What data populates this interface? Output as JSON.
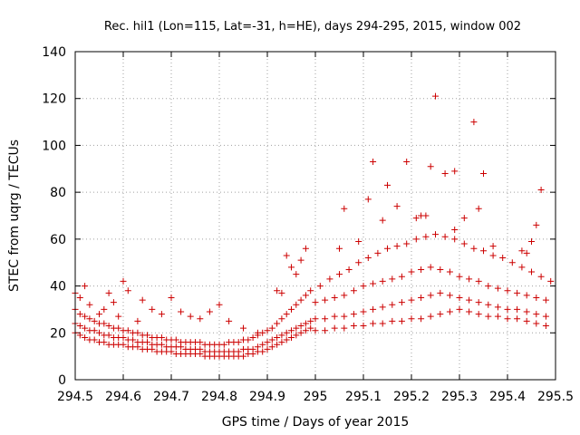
{
  "chart_data": {
    "type": "scatter",
    "title": "Rec. hil1 (Lon=115, Lat=-31, h=HE), days 294-295, 2015, window 002",
    "xlabel": "GPS time / Days of year 2015",
    "ylabel": "STEC from uqrg / TECUs",
    "xlim": [
      294.5,
      295.5
    ],
    "ylim": [
      0,
      140
    ],
    "x_ticks": [
      "294.5",
      "294.6",
      "294.7",
      "294.8",
      "294.9",
      "295",
      "295.1",
      "295.2",
      "295.3",
      "295.4",
      "295.5"
    ],
    "y_ticks": [
      "0",
      "20",
      "40",
      "60",
      "80",
      "100",
      "120",
      "140"
    ],
    "grid": true,
    "marker": "+",
    "color": "#cc0000",
    "series": [
      {
        "name": "STEC",
        "x": [
          294.5,
          294.51,
          294.52,
          294.53,
          294.54,
          294.55,
          294.56,
          294.57,
          294.58,
          294.59,
          294.6,
          294.61,
          294.62,
          294.63,
          294.64,
          294.65,
          294.66,
          294.67,
          294.68,
          294.69,
          294.7,
          294.71,
          294.72,
          294.73,
          294.74,
          294.75,
          294.76,
          294.77,
          294.78,
          294.79,
          294.8,
          294.81,
          294.82,
          294.83,
          294.84,
          294.85,
          294.86,
          294.87,
          294.88,
          294.89,
          294.9,
          294.91,
          294.92,
          294.93,
          294.94,
          294.95,
          294.96,
          294.97,
          294.98,
          294.99,
          294.5,
          294.51,
          294.52,
          294.53,
          294.54,
          294.55,
          294.56,
          294.57,
          294.58,
          294.59,
          294.6,
          294.61,
          294.62,
          294.63,
          294.64,
          294.65,
          294.66,
          294.67,
          294.68,
          294.69,
          294.7,
          294.71,
          294.72,
          294.73,
          294.74,
          294.75,
          294.76,
          294.77,
          294.78,
          294.79,
          294.8,
          294.81,
          294.82,
          294.83,
          294.84,
          294.85,
          294.86,
          294.87,
          294.88,
          294.89,
          294.9,
          294.91,
          294.92,
          294.93,
          294.94,
          294.95,
          294.96,
          294.97,
          294.98,
          294.99,
          294.5,
          294.51,
          294.52,
          294.53,
          294.54,
          294.55,
          294.56,
          294.57,
          294.58,
          294.59,
          294.6,
          294.61,
          294.62,
          294.63,
          294.64,
          294.65,
          294.66,
          294.67,
          294.68,
          294.69,
          294.7,
          294.71,
          294.72,
          294.73,
          294.74,
          294.75,
          294.76,
          294.77,
          294.78,
          294.79,
          294.8,
          294.81,
          294.82,
          294.83,
          294.84,
          294.85,
          294.86,
          294.87,
          294.88,
          294.89,
          294.9,
          294.91,
          294.92,
          294.93,
          294.94,
          294.95,
          294.96,
          294.97,
          294.98,
          294.99,
          294.5,
          294.51,
          294.52,
          294.53,
          294.55,
          294.56,
          294.57,
          294.58,
          294.59,
          294.6,
          294.61,
          294.63,
          294.64,
          294.66,
          294.68,
          294.7,
          294.72,
          294.74,
          294.76,
          294.78,
          294.8,
          294.82,
          294.85,
          294.88,
          294.92,
          294.93,
          294.94,
          294.95,
          294.96,
          294.97,
          294.98,
          295.0,
          295.02,
          295.04,
          295.06,
          295.08,
          295.1,
          295.12,
          295.14,
          295.16,
          295.18,
          295.2,
          295.22,
          295.24,
          295.26,
          295.28,
          295.3,
          295.32,
          295.34,
          295.36,
          295.38,
          295.4,
          295.42,
          295.44,
          295.46,
          295.48,
          295.0,
          295.02,
          295.04,
          295.06,
          295.08,
          295.1,
          295.12,
          295.14,
          295.16,
          295.18,
          295.2,
          295.22,
          295.24,
          295.26,
          295.28,
          295.3,
          295.32,
          295.34,
          295.36,
          295.38,
          295.4,
          295.42,
          295.44,
          295.46,
          295.48,
          295.0,
          295.02,
          295.04,
          295.06,
          295.08,
          295.1,
          295.12,
          295.14,
          295.16,
          295.18,
          295.2,
          295.22,
          295.24,
          295.26,
          295.28,
          295.3,
          295.32,
          295.34,
          295.36,
          295.38,
          295.4,
          295.42,
          295.44,
          295.46,
          295.48,
          295.01,
          295.03,
          295.05,
          295.07,
          295.09,
          295.11,
          295.13,
          295.15,
          295.17,
          295.19,
          295.21,
          295.23,
          295.25,
          295.27,
          295.29,
          295.31,
          295.33,
          295.35,
          295.37,
          295.39,
          295.41,
          295.43,
          295.45,
          295.47,
          295.49,
          295.06,
          295.11,
          295.12,
          295.15,
          295.17,
          295.19,
          295.22,
          295.24,
          295.25,
          295.27,
          295.29,
          295.31,
          295.33,
          295.34,
          295.35,
          295.44,
          295.45,
          295.46,
          295.47,
          295.05,
          295.09,
          295.14,
          295.21,
          295.23,
          295.29,
          295.37,
          295.43
        ],
        "y": [
          20,
          19,
          18,
          17,
          17,
          16,
          16,
          15,
          15,
          15,
          15,
          14,
          14,
          14,
          13,
          13,
          13,
          12,
          12,
          12,
          12,
          11,
          11,
          11,
          11,
          11,
          11,
          10,
          10,
          10,
          10,
          10,
          10,
          10,
          10,
          10,
          11,
          11,
          12,
          12,
          13,
          14,
          15,
          16,
          17,
          18,
          19,
          20,
          21,
          22,
          24,
          23,
          22,
          21,
          21,
          20,
          19,
          19,
          18,
          18,
          18,
          17,
          17,
          16,
          16,
          16,
          15,
          15,
          15,
          14,
          14,
          14,
          14,
          13,
          13,
          13,
          13,
          12,
          12,
          12,
          12,
          12,
          12,
          12,
          12,
          13,
          13,
          13,
          14,
          15,
          16,
          17,
          18,
          19,
          20,
          21,
          22,
          23,
          24,
          25,
          30,
          28,
          27,
          26,
          25,
          24,
          24,
          23,
          22,
          22,
          21,
          21,
          20,
          20,
          19,
          19,
          18,
          18,
          18,
          17,
          17,
          17,
          16,
          16,
          16,
          16,
          16,
          15,
          15,
          15,
          15,
          15,
          16,
          16,
          16,
          17,
          17,
          18,
          19,
          20,
          21,
          22,
          24,
          26,
          28,
          30,
          32,
          34,
          36,
          38,
          37,
          35,
          40,
          32,
          28,
          30,
          37,
          33,
          27,
          42,
          38,
          25,
          34,
          30,
          28,
          35,
          29,
          27,
          26,
          29,
          32,
          25,
          22,
          20,
          38,
          37,
          53,
          48,
          45,
          51,
          56,
          21,
          21,
          22,
          22,
          23,
          23,
          24,
          24,
          25,
          25,
          26,
          26,
          27,
          28,
          29,
          30,
          29,
          28,
          27,
          27,
          26,
          26,
          25,
          24,
          23,
          26,
          26,
          27,
          27,
          28,
          29,
          30,
          31,
          32,
          33,
          34,
          35,
          36,
          37,
          36,
          35,
          34,
          33,
          32,
          31,
          30,
          30,
          29,
          28,
          27,
          33,
          34,
          35,
          36,
          38,
          40,
          41,
          42,
          43,
          44,
          46,
          47,
          48,
          47,
          46,
          44,
          43,
          42,
          40,
          39,
          38,
          37,
          36,
          35,
          34,
          40,
          43,
          45,
          47,
          50,
          52,
          54,
          56,
          57,
          58,
          60,
          61,
          62,
          61,
          60,
          58,
          56,
          55,
          53,
          52,
          50,
          48,
          46,
          44,
          42,
          73,
          77,
          93,
          83,
          74,
          93,
          70,
          91,
          121,
          88,
          89,
          69,
          110,
          73,
          88,
          54,
          59,
          66,
          81,
          56,
          59,
          68,
          69,
          70,
          64,
          57,
          55
        ]
      }
    ]
  }
}
